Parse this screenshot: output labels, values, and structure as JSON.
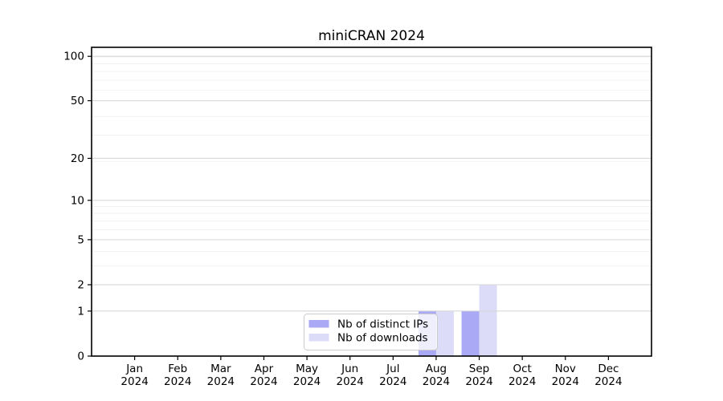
{
  "chart_data": {
    "type": "bar",
    "title": "miniCRAN 2024",
    "categories": [
      "Jan 2024",
      "Feb 2024",
      "Mar 2024",
      "Apr 2024",
      "May 2024",
      "Jun 2024",
      "Jul 2024",
      "Aug 2024",
      "Sep 2024",
      "Oct 2024",
      "Nov 2024",
      "Dec 2024"
    ],
    "series": [
      {
        "name": "Nb of distinct IPs",
        "color": "#a9a9f5",
        "values": [
          0,
          0,
          0,
          0,
          0,
          0,
          0,
          1,
          1,
          0,
          0,
          0
        ]
      },
      {
        "name": "Nb of downloads",
        "color": "#dcdcf8",
        "values": [
          0,
          0,
          0,
          0,
          0,
          0,
          0,
          1,
          2,
          0,
          0,
          0
        ]
      }
    ],
    "xlabel": "",
    "ylabel": "",
    "yscale": "log1p",
    "yticks": [
      0,
      1,
      2,
      5,
      10,
      20,
      50,
      100
    ],
    "ylim": [
      0,
      115
    ],
    "grid": {
      "major_color": "#d7d7d7",
      "minor_color": "#f2f2f2",
      "minor_values": [
        3,
        4,
        6,
        7,
        8,
        9,
        19,
        29,
        39,
        59,
        69,
        79,
        89,
        99
      ]
    },
    "legend": {
      "position": "lower center",
      "background": "#ffffff",
      "background_opacity": 0.8,
      "border_color": "#cccccc",
      "entries": [
        "Nb of distinct IPs",
        "Nb of downloads"
      ]
    },
    "frame_color": "#000000",
    "text_color": "#000000"
  }
}
